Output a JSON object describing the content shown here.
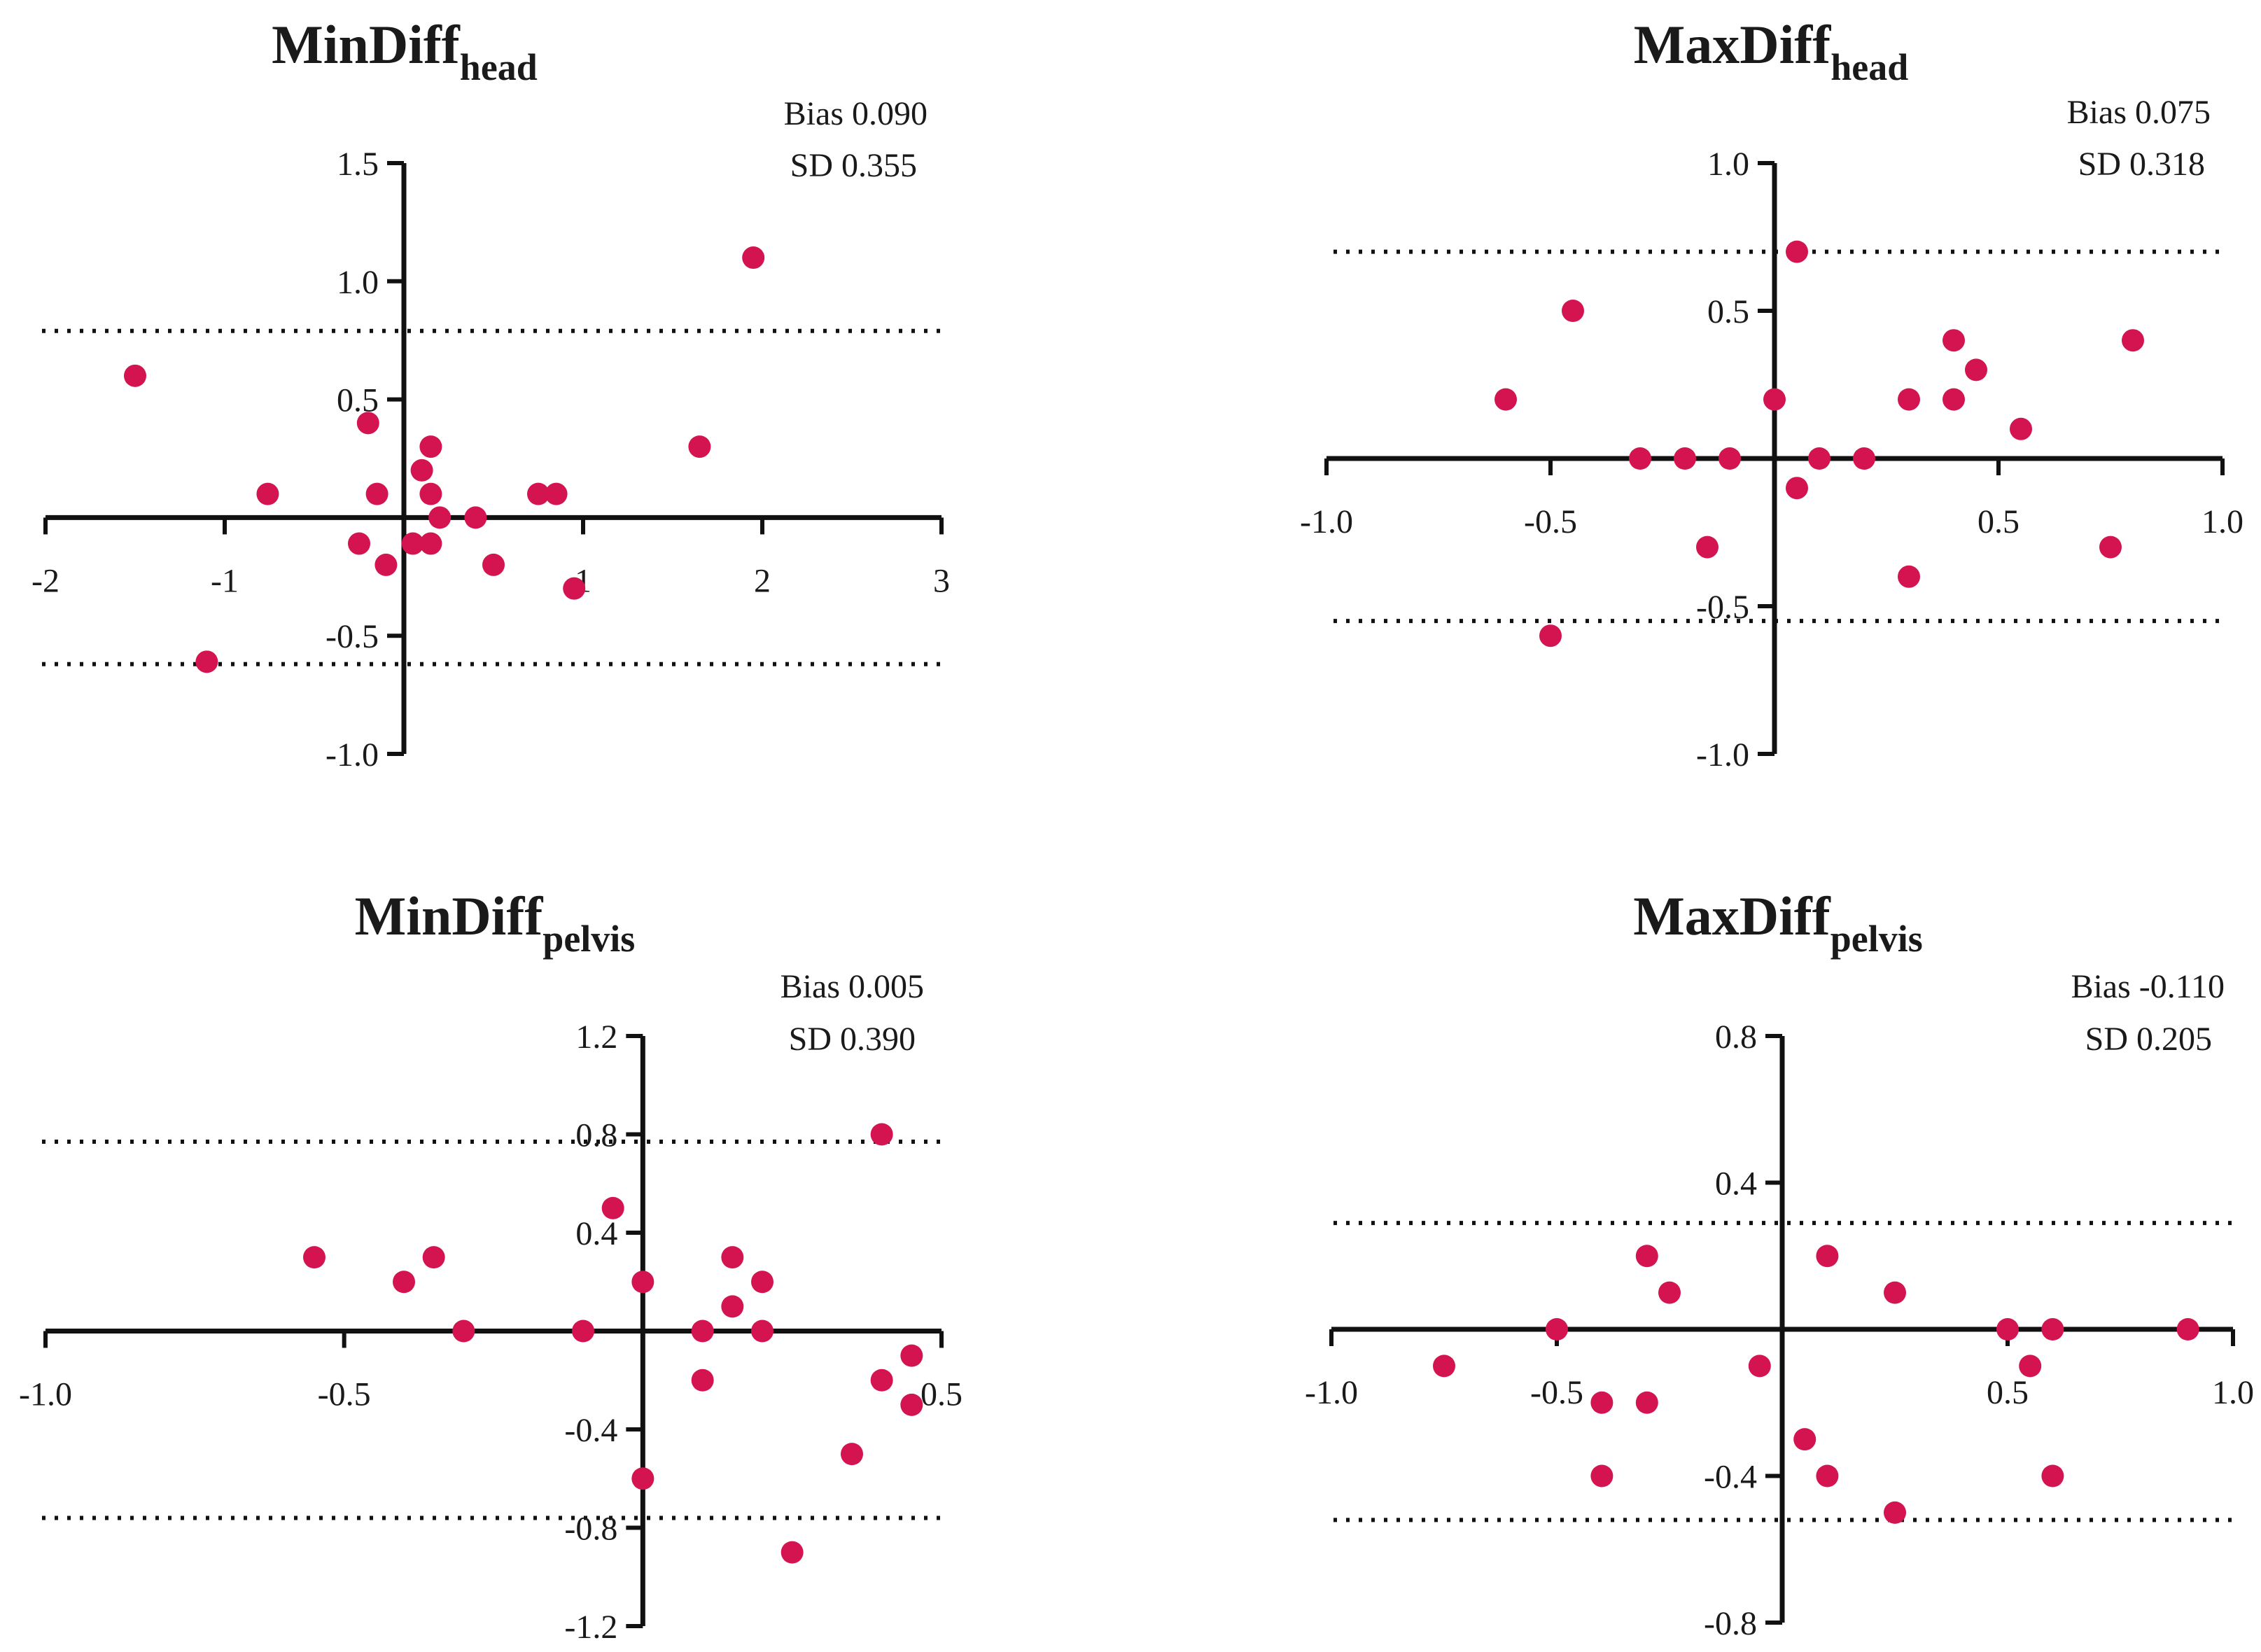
{
  "colors": {
    "point": "#d31451",
    "axis": "#111111"
  },
  "chart_data": [
    {
      "type": "scatter",
      "title_main": "MinDiff",
      "title_sub": "head",
      "bias_text": "Bias 0.090",
      "sd_text": "SD 0.355",
      "xlim": [
        -2,
        3
      ],
      "ylim": [
        -1.0,
        1.5
      ],
      "x_ticks": [
        -2,
        -1,
        0,
        1,
        2,
        3
      ],
      "x_tick_labels": [
        "-2",
        "-1",
        "",
        "1",
        "2",
        "3"
      ],
      "y_ticks": [
        -1.0,
        -0.5,
        0,
        0.5,
        1.0,
        1.5
      ],
      "y_tick_labels": [
        "-1.0",
        "-0.5",
        "",
        "0.5",
        "1.0",
        "1.5"
      ],
      "limits_of_agreement": [
        0.79,
        -0.62
      ],
      "points": [
        {
          "x": -1.5,
          "y": 0.6
        },
        {
          "x": -1.1,
          "y": -0.61
        },
        {
          "x": -0.76,
          "y": 0.1
        },
        {
          "x": -0.2,
          "y": 0.4
        },
        {
          "x": -0.25,
          "y": -0.11
        },
        {
          "x": -0.15,
          "y": 0.1
        },
        {
          "x": -0.1,
          "y": -0.2
        },
        {
          "x": 0.05,
          "y": -0.11
        },
        {
          "x": 0.1,
          "y": 0.2
        },
        {
          "x": 0.15,
          "y": 0.3
        },
        {
          "x": 0.15,
          "y": 0.1
        },
        {
          "x": 0.15,
          "y": -0.11
        },
        {
          "x": 0.2,
          "y": 0.0
        },
        {
          "x": 0.4,
          "y": 0.0
        },
        {
          "x": 0.5,
          "y": -0.2
        },
        {
          "x": 0.75,
          "y": 0.1
        },
        {
          "x": 0.85,
          "y": 0.1
        },
        {
          "x": 0.95,
          "y": -0.3
        },
        {
          "x": 1.65,
          "y": 0.3
        },
        {
          "x": 1.95,
          "y": 1.1
        }
      ]
    },
    {
      "type": "scatter",
      "title_main": "MaxDiff",
      "title_sub": "head",
      "bias_text": "Bias 0.075",
      "sd_text": "SD 0.318",
      "xlim": [
        -1.0,
        1.0
      ],
      "ylim": [
        -1.0,
        1.0
      ],
      "x_ticks": [
        -1.0,
        -0.5,
        0,
        0.5,
        1.0
      ],
      "x_tick_labels": [
        "-1.0",
        "-0.5",
        "",
        "0.5",
        "1.0"
      ],
      "y_ticks": [
        -1.0,
        -0.5,
        0,
        0.5,
        1.0
      ],
      "y_tick_labels": [
        "-1.0",
        "-0.5",
        "",
        "0.5",
        "1.0"
      ],
      "limits_of_agreement": [
        0.7,
        -0.55
      ],
      "points": [
        {
          "x": -0.6,
          "y": 0.2
        },
        {
          "x": -0.45,
          "y": 0.5
        },
        {
          "x": -0.5,
          "y": -0.6
        },
        {
          "x": -0.3,
          "y": 0.0
        },
        {
          "x": -0.2,
          "y": 0.0
        },
        {
          "x": -0.15,
          "y": -0.3
        },
        {
          "x": -0.1,
          "y": 0.0
        },
        {
          "x": 0.0,
          "y": 0.2
        },
        {
          "x": 0.05,
          "y": 0.7
        },
        {
          "x": 0.05,
          "y": -0.1
        },
        {
          "x": 0.1,
          "y": 0.0
        },
        {
          "x": 0.2,
          "y": 0.0
        },
        {
          "x": 0.3,
          "y": 0.2
        },
        {
          "x": 0.3,
          "y": -0.4
        },
        {
          "x": 0.4,
          "y": 0.4
        },
        {
          "x": 0.4,
          "y": 0.2
        },
        {
          "x": 0.45,
          "y": 0.3
        },
        {
          "x": 0.55,
          "y": 0.1
        },
        {
          "x": 0.75,
          "y": -0.3
        },
        {
          "x": 0.8,
          "y": 0.4
        }
      ]
    },
    {
      "type": "scatter",
      "title_main": "MinDiff",
      "title_sub": "pelvis",
      "bias_text": "Bias 0.005",
      "sd_text": "SD 0.390",
      "xlim": [
        -1.0,
        0.5
      ],
      "ylim": [
        -1.2,
        1.2
      ],
      "x_ticks": [
        -1.0,
        -0.5,
        0,
        0.5
      ],
      "x_tick_labels": [
        "-1.0",
        "-0.5",
        "",
        "0.5"
      ],
      "y_ticks": [
        -1.2,
        -0.8,
        -0.4,
        0,
        0.4,
        0.8,
        1.2
      ],
      "y_tick_labels": [
        "-1.2",
        "-0.8",
        "-0.4",
        "",
        "0.4",
        "0.8",
        "1.2"
      ],
      "limits_of_agreement": [
        0.77,
        -0.76
      ],
      "points": [
        {
          "x": -0.55,
          "y": 0.3
        },
        {
          "x": -0.4,
          "y": 0.2
        },
        {
          "x": -0.35,
          "y": 0.3
        },
        {
          "x": -0.3,
          "y": 0.0
        },
        {
          "x": -0.1,
          "y": 0.0
        },
        {
          "x": -0.05,
          "y": 0.5
        },
        {
          "x": 0.0,
          "y": 0.2
        },
        {
          "x": 0.0,
          "y": -0.6
        },
        {
          "x": 0.1,
          "y": 0.0
        },
        {
          "x": 0.1,
          "y": -0.2
        },
        {
          "x": 0.15,
          "y": 0.3
        },
        {
          "x": 0.15,
          "y": 0.1
        },
        {
          "x": 0.2,
          "y": 0.2
        },
        {
          "x": 0.2,
          "y": 0.0
        },
        {
          "x": 0.25,
          "y": -0.9
        },
        {
          "x": 0.35,
          "y": -0.5
        },
        {
          "x": 0.4,
          "y": 0.8
        },
        {
          "x": 0.4,
          "y": -0.2
        },
        {
          "x": 0.45,
          "y": -0.1
        },
        {
          "x": 0.45,
          "y": -0.3
        }
      ]
    },
    {
      "type": "scatter",
      "title_main": "MaxDiff",
      "title_sub": "pelvis",
      "bias_text": "Bias -0.110",
      "sd_text": "SD 0.205",
      "xlim": [
        -1.0,
        1.0
      ],
      "ylim": [
        -0.8,
        0.8
      ],
      "x_ticks": [
        -1.0,
        -0.5,
        0,
        0.5,
        1.0
      ],
      "x_tick_labels": [
        "-1.0",
        "-0.5",
        "",
        "0.5",
        "1.0"
      ],
      "y_ticks": [
        -0.8,
        -0.4,
        0,
        0.4,
        0.8
      ],
      "y_tick_labels": [
        "-0.8",
        "-0.4",
        "",
        "0.4",
        "0.8"
      ],
      "limits_of_agreement": [
        0.29,
        -0.52
      ],
      "points": [
        {
          "x": -0.75,
          "y": -0.1
        },
        {
          "x": -0.5,
          "y": 0.0
        },
        {
          "x": -0.4,
          "y": -0.2
        },
        {
          "x": -0.4,
          "y": -0.4
        },
        {
          "x": -0.3,
          "y": 0.2
        },
        {
          "x": -0.3,
          "y": -0.2
        },
        {
          "x": -0.25,
          "y": 0.1
        },
        {
          "x": -0.05,
          "y": -0.1
        },
        {
          "x": 0.05,
          "y": -0.3
        },
        {
          "x": 0.1,
          "y": 0.2
        },
        {
          "x": 0.1,
          "y": -0.4
        },
        {
          "x": 0.25,
          "y": 0.1
        },
        {
          "x": 0.25,
          "y": -0.5
        },
        {
          "x": 0.5,
          "y": 0.0
        },
        {
          "x": 0.55,
          "y": -0.1
        },
        {
          "x": 0.6,
          "y": 0.0
        },
        {
          "x": 0.6,
          "y": -0.4
        },
        {
          "x": 0.9,
          "y": 0.0
        }
      ]
    }
  ]
}
